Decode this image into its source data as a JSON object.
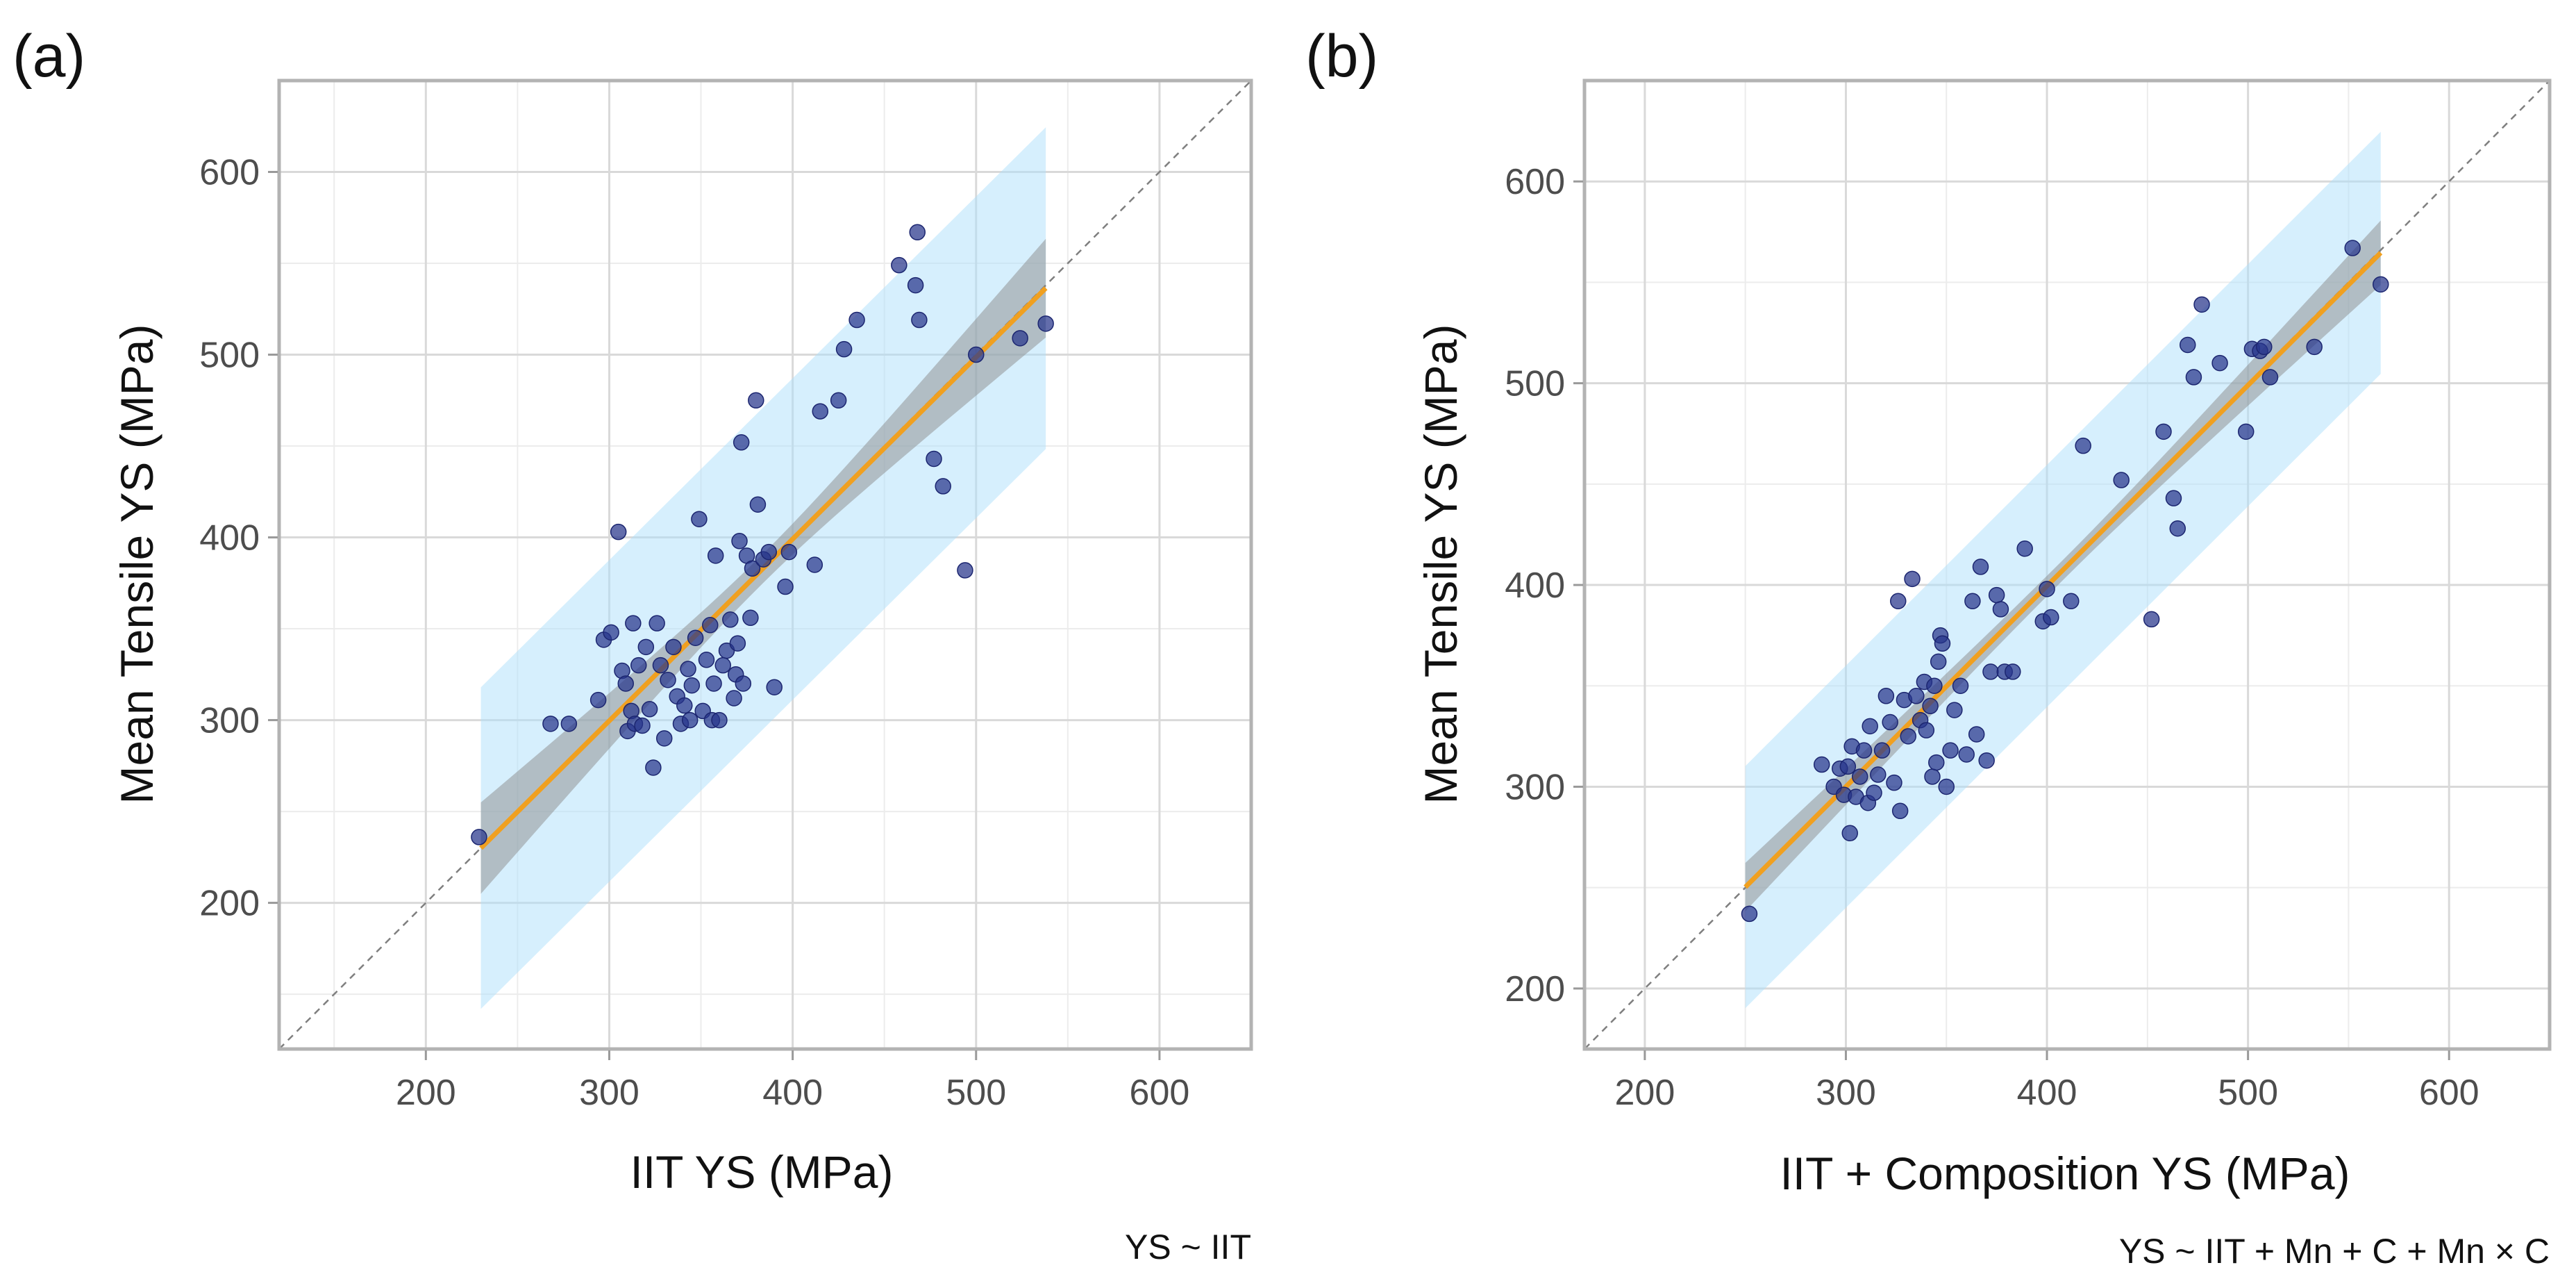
{
  "chart_data": [
    {
      "type": "scatter",
      "panel_label": "(a)",
      "title": "",
      "xlabel": "IIT YS (MPa)",
      "ylabel": "Mean Tensile YS (MPa)",
      "caption": "YS ~ IIT",
      "xlim": [
        120,
        650
      ],
      "ylim": [
        120,
        650
      ],
      "xticks": [
        200,
        300,
        400,
        500,
        600
      ],
      "yticks": [
        200,
        300,
        400,
        500,
        600
      ],
      "grid": true,
      "fit": {
        "slope": 0.995,
        "intercept": 1.1,
        "x_range": [
          230,
          538
        ],
        "ci_half_width": [
          25,
          8,
          27
        ],
        "pi_half_width": 88,
        "color": "#f0a020"
      },
      "identity_line": true,
      "points": [
        {
          "x": 229,
          "y": 236
        },
        {
          "x": 268,
          "y": 298
        },
        {
          "x": 278,
          "y": 298
        },
        {
          "x": 294,
          "y": 311
        },
        {
          "x": 297,
          "y": 344
        },
        {
          "x": 301,
          "y": 348
        },
        {
          "x": 305,
          "y": 403
        },
        {
          "x": 307,
          "y": 327
        },
        {
          "x": 309,
          "y": 320
        },
        {
          "x": 310,
          "y": 294
        },
        {
          "x": 312,
          "y": 305
        },
        {
          "x": 313,
          "y": 353
        },
        {
          "x": 314,
          "y": 298
        },
        {
          "x": 316,
          "y": 330
        },
        {
          "x": 318,
          "y": 297
        },
        {
          "x": 320,
          "y": 340
        },
        {
          "x": 322,
          "y": 306
        },
        {
          "x": 324,
          "y": 274
        },
        {
          "x": 326,
          "y": 353
        },
        {
          "x": 328,
          "y": 330
        },
        {
          "x": 330,
          "y": 290
        },
        {
          "x": 332,
          "y": 322
        },
        {
          "x": 335,
          "y": 340
        },
        {
          "x": 337,
          "y": 313
        },
        {
          "x": 339,
          "y": 298
        },
        {
          "x": 341,
          "y": 308
        },
        {
          "x": 343,
          "y": 328
        },
        {
          "x": 344,
          "y": 300
        },
        {
          "x": 345,
          "y": 319
        },
        {
          "x": 347,
          "y": 345
        },
        {
          "x": 349,
          "y": 410
        },
        {
          "x": 351,
          "y": 305
        },
        {
          "x": 353,
          "y": 333
        },
        {
          "x": 355,
          "y": 352
        },
        {
          "x": 356,
          "y": 300
        },
        {
          "x": 357,
          "y": 320
        },
        {
          "x": 358,
          "y": 390
        },
        {
          "x": 360,
          "y": 300
        },
        {
          "x": 362,
          "y": 330
        },
        {
          "x": 364,
          "y": 338
        },
        {
          "x": 366,
          "y": 355
        },
        {
          "x": 368,
          "y": 312
        },
        {
          "x": 369,
          "y": 325
        },
        {
          "x": 370,
          "y": 342
        },
        {
          "x": 371,
          "y": 398
        },
        {
          "x": 372,
          "y": 452
        },
        {
          "x": 373,
          "y": 320
        },
        {
          "x": 375,
          "y": 390
        },
        {
          "x": 377,
          "y": 356
        },
        {
          "x": 378,
          "y": 383
        },
        {
          "x": 380,
          "y": 475
        },
        {
          "x": 381,
          "y": 418
        },
        {
          "x": 384,
          "y": 388
        },
        {
          "x": 387,
          "y": 392
        },
        {
          "x": 390,
          "y": 318
        },
        {
          "x": 396,
          "y": 373
        },
        {
          "x": 398,
          "y": 392
        },
        {
          "x": 412,
          "y": 385
        },
        {
          "x": 415,
          "y": 469
        },
        {
          "x": 425,
          "y": 475
        },
        {
          "x": 428,
          "y": 503
        },
        {
          "x": 435,
          "y": 519
        },
        {
          "x": 458,
          "y": 549
        },
        {
          "x": 467,
          "y": 538
        },
        {
          "x": 468,
          "y": 567
        },
        {
          "x": 469,
          "y": 519
        },
        {
          "x": 477,
          "y": 443
        },
        {
          "x": 482,
          "y": 428
        },
        {
          "x": 494,
          "y": 382
        },
        {
          "x": 500,
          "y": 500
        },
        {
          "x": 524,
          "y": 509
        },
        {
          "x": 538,
          "y": 517
        }
      ]
    },
    {
      "type": "scatter",
      "panel_label": "(b)",
      "title": "",
      "xlabel": "IIT + Composition YS (MPa)",
      "ylabel": "Mean Tensile YS (MPa)",
      "caption": "YS ~ IIT + Mn + C + Mn × C",
      "xlim": [
        170,
        650
      ],
      "ylim": [
        170,
        650
      ],
      "xticks": [
        200,
        300,
        400,
        500,
        600
      ],
      "yticks": [
        200,
        300,
        400,
        500,
        600
      ],
      "grid": true,
      "fit": {
        "slope": 0.995,
        "intercept": 1.5,
        "x_range": [
          250,
          566
        ],
        "ci_half_width": [
          12,
          5,
          16
        ],
        "pi_half_width": 60,
        "color": "#f0a020"
      },
      "identity_line": true,
      "points": [
        {
          "x": 252,
          "y": 237
        },
        {
          "x": 288,
          "y": 311
        },
        {
          "x": 294,
          "y": 300
        },
        {
          "x": 297,
          "y": 309
        },
        {
          "x": 299,
          "y": 296
        },
        {
          "x": 301,
          "y": 310
        },
        {
          "x": 302,
          "y": 277
        },
        {
          "x": 303,
          "y": 320
        },
        {
          "x": 305,
          "y": 295
        },
        {
          "x": 307,
          "y": 305
        },
        {
          "x": 309,
          "y": 318
        },
        {
          "x": 311,
          "y": 292
        },
        {
          "x": 312,
          "y": 330
        },
        {
          "x": 314,
          "y": 297
        },
        {
          "x": 316,
          "y": 306
        },
        {
          "x": 318,
          "y": 318
        },
        {
          "x": 320,
          "y": 345
        },
        {
          "x": 322,
          "y": 332
        },
        {
          "x": 324,
          "y": 302
        },
        {
          "x": 326,
          "y": 392
        },
        {
          "x": 327,
          "y": 288
        },
        {
          "x": 329,
          "y": 343
        },
        {
          "x": 331,
          "y": 325
        },
        {
          "x": 333,
          "y": 403
        },
        {
          "x": 335,
          "y": 345
        },
        {
          "x": 337,
          "y": 333
        },
        {
          "x": 339,
          "y": 352
        },
        {
          "x": 340,
          "y": 328
        },
        {
          "x": 342,
          "y": 340
        },
        {
          "x": 343,
          "y": 305
        },
        {
          "x": 344,
          "y": 350
        },
        {
          "x": 345,
          "y": 312
        },
        {
          "x": 346,
          "y": 362
        },
        {
          "x": 347,
          "y": 375
        },
        {
          "x": 348,
          "y": 371
        },
        {
          "x": 350,
          "y": 300
        },
        {
          "x": 352,
          "y": 318
        },
        {
          "x": 354,
          "y": 338
        },
        {
          "x": 357,
          "y": 350
        },
        {
          "x": 360,
          "y": 316
        },
        {
          "x": 363,
          "y": 392
        },
        {
          "x": 365,
          "y": 326
        },
        {
          "x": 367,
          "y": 409
        },
        {
          "x": 370,
          "y": 313
        },
        {
          "x": 372,
          "y": 357
        },
        {
          "x": 375,
          "y": 395
        },
        {
          "x": 377,
          "y": 388
        },
        {
          "x": 379,
          "y": 357
        },
        {
          "x": 383,
          "y": 357
        },
        {
          "x": 389,
          "y": 418
        },
        {
          "x": 398,
          "y": 382
        },
        {
          "x": 400,
          "y": 398
        },
        {
          "x": 402,
          "y": 384
        },
        {
          "x": 412,
          "y": 392
        },
        {
          "x": 418,
          "y": 469
        },
        {
          "x": 437,
          "y": 452
        },
        {
          "x": 452,
          "y": 383
        },
        {
          "x": 458,
          "y": 476
        },
        {
          "x": 463,
          "y": 443
        },
        {
          "x": 465,
          "y": 428
        },
        {
          "x": 470,
          "y": 519
        },
        {
          "x": 473,
          "y": 503
        },
        {
          "x": 477,
          "y": 539
        },
        {
          "x": 486,
          "y": 510
        },
        {
          "x": 499,
          "y": 476
        },
        {
          "x": 502,
          "y": 517
        },
        {
          "x": 506,
          "y": 516
        },
        {
          "x": 508,
          "y": 518
        },
        {
          "x": 511,
          "y": 503
        },
        {
          "x": 533,
          "y": 518
        },
        {
          "x": 552,
          "y": 567
        },
        {
          "x": 566,
          "y": 549
        }
      ]
    }
  ]
}
